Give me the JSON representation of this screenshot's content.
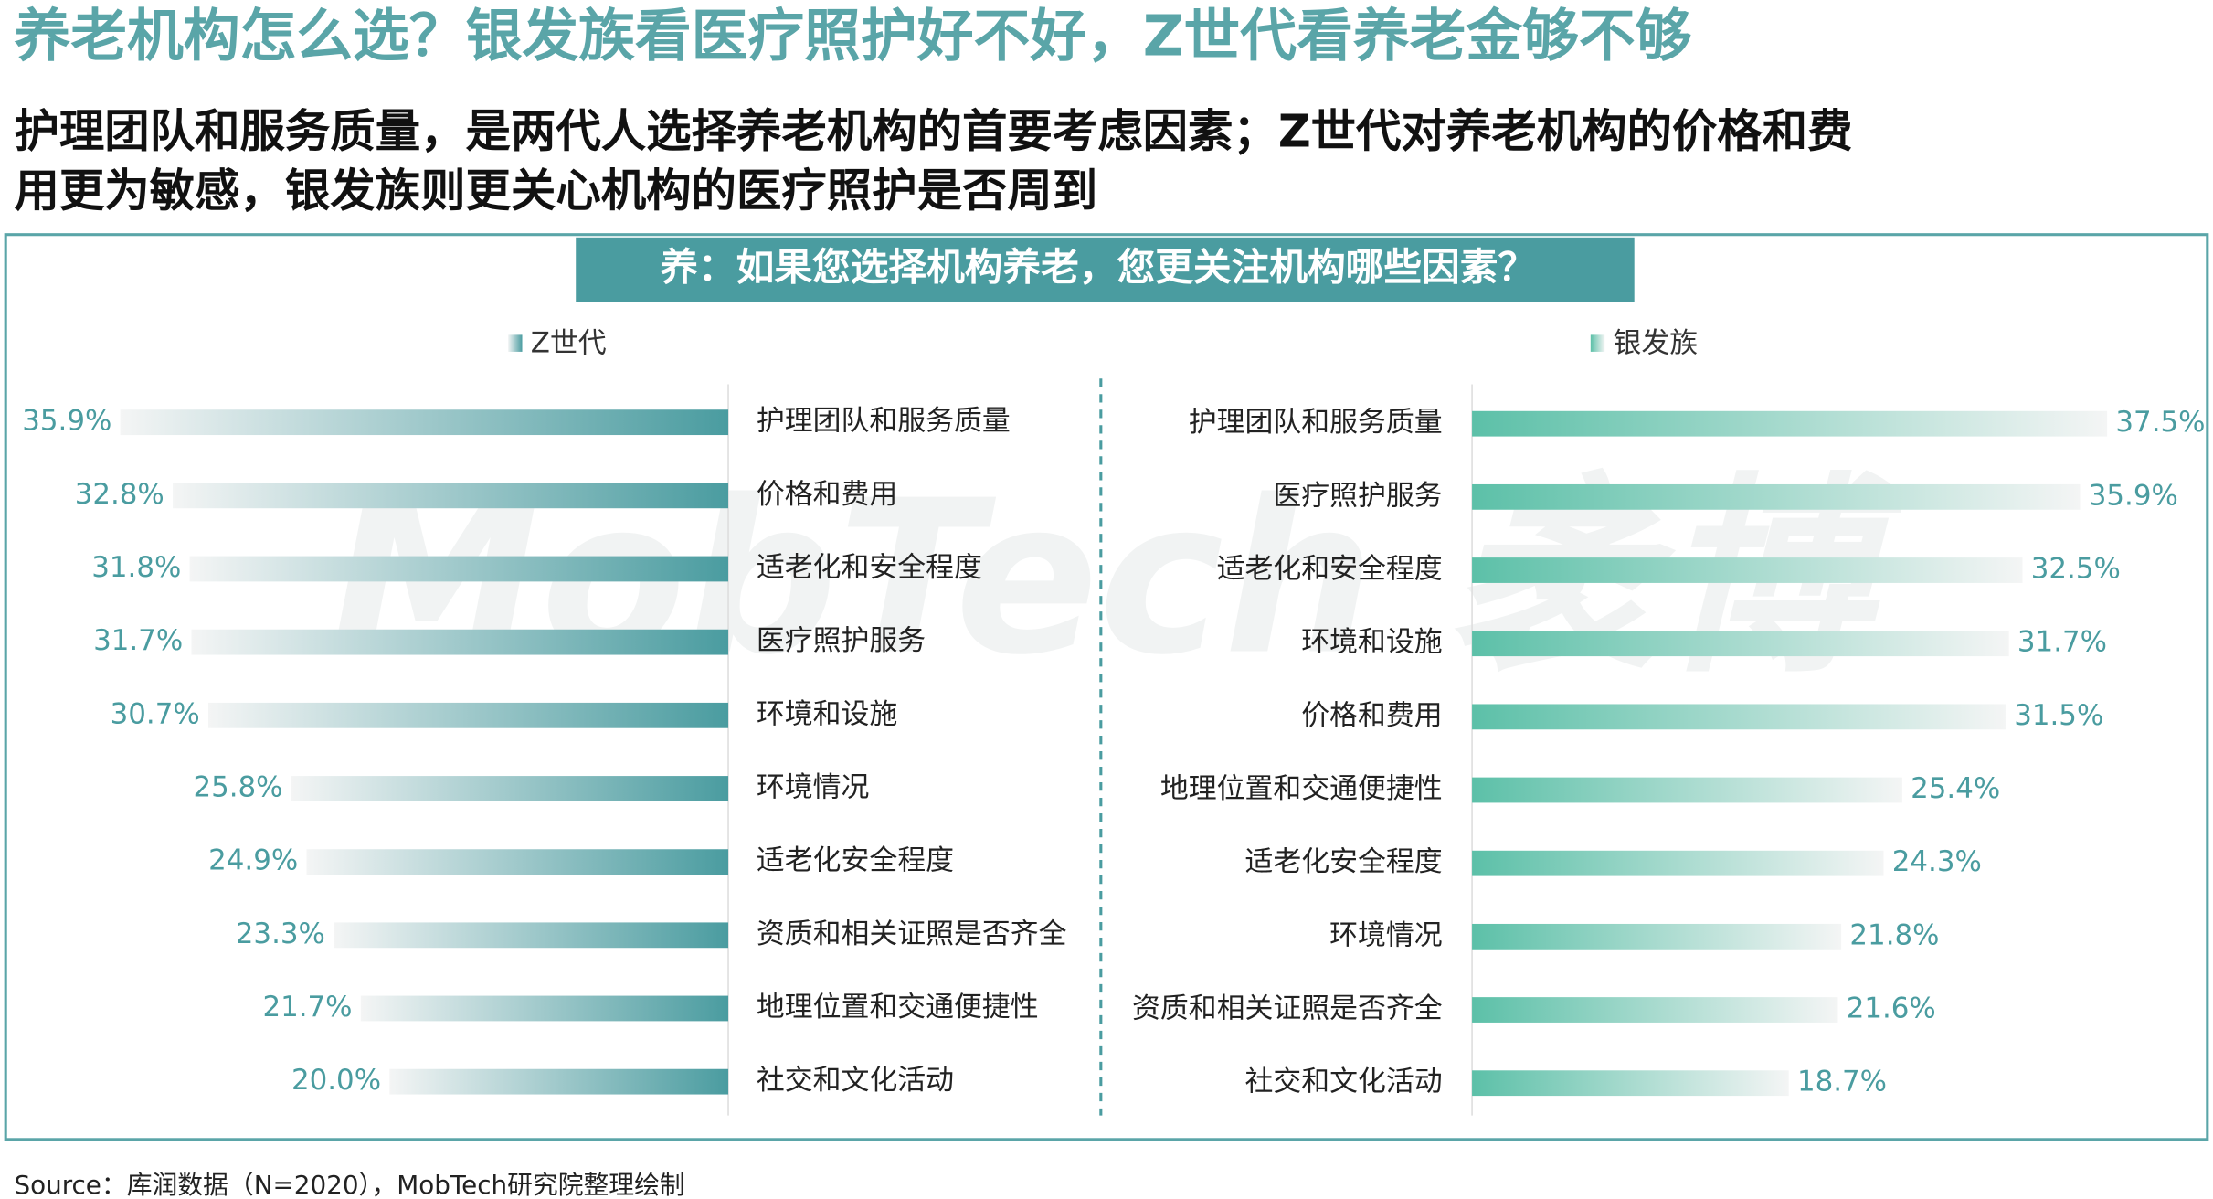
{
  "title": "养老机构怎么选？银发族看医疗照护好不好，Z世代看养老金够不够",
  "subtitle": [
    "护理团队和服务质量，是两代人选择养老机构的首要考虑因素；Z世代对养老机构的价格和费",
    "用更为敏感，银发族则更关心机构的医疗照护是否周到"
  ],
  "question": "养：如果您选择机构养老，您更关注机构哪些因素？",
  "watermark": "MobTech 袤博",
  "source": "Source：库润数据（N=2020），MobTech研究院整理绘制",
  "chart_data": [
    {
      "type": "bar",
      "bar_direction": "left",
      "categories": [
        "护理团队和服务质量",
        "价格和费用",
        "适老化和安全程度",
        "医疗照护服务",
        "环境和设施",
        "环境情况",
        "适老化安全程度",
        "资质和相关证照是否齐全",
        "地理位置和交通便捷性",
        "社交和文化活动"
      ],
      "series": [
        {
          "name": "Z世代",
          "color": "#4a9ca0",
          "values": [
            35.9,
            32.8,
            31.8,
            31.7,
            30.7,
            25.8,
            24.9,
            23.3,
            21.7,
            20.0
          ],
          "value_labels": [
            "35.9%",
            "32.8%",
            "31.8%",
            "31.7%",
            "30.7%",
            "25.8%",
            "24.9%",
            "23.3%",
            "21.7%",
            "20.0%"
          ]
        }
      ]
    },
    {
      "type": "bar",
      "bar_direction": "right",
      "categories": [
        "护理团队和服务质量",
        "医疗照护服务",
        "适老化和安全程度",
        "环境和设施",
        "价格和费用",
        "地理位置和交通便捷性",
        "适老化安全程度",
        "环境情况",
        "资质和相关证照是否齐全",
        "社交和文化活动"
      ],
      "series": [
        {
          "name": "银发族",
          "color": "#5cc0a8",
          "values": [
            37.5,
            35.9,
            32.5,
            31.7,
            31.5,
            25.4,
            24.3,
            21.8,
            21.6,
            18.7
          ],
          "value_labels": [
            "37.5%",
            "35.9%",
            "32.5%",
            "31.7%",
            "31.5%",
            "25.4%",
            "24.3%",
            "21.8%",
            "21.6%",
            "18.7%"
          ]
        }
      ]
    }
  ]
}
